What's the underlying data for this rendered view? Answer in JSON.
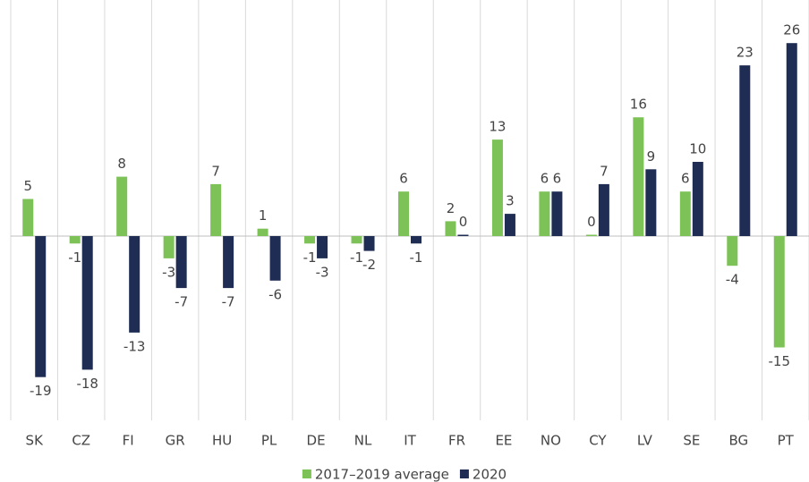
{
  "chart_data": {
    "type": "bar",
    "categories": [
      "SK",
      "CZ",
      "FI",
      "GR",
      "HU",
      "PL",
      "DE",
      "NL",
      "IT",
      "FR",
      "EE",
      "NO",
      "CY",
      "LV",
      "SE",
      "BG",
      "PT"
    ],
    "series": [
      {
        "name": "2017–2019 average",
        "color": "#7dc257",
        "values": [
          5,
          -1,
          8,
          -3,
          7,
          1,
          -1,
          -1,
          6,
          2,
          13,
          6,
          0,
          16,
          6,
          -4,
          -15
        ]
      },
      {
        "name": "2020",
        "color": "#1f2d54",
        "values": [
          -19,
          -18,
          -13,
          -7,
          -7,
          -6,
          -3,
          -2,
          -1,
          0,
          3,
          6,
          7,
          9,
          10,
          23,
          26
        ]
      }
    ],
    "legend": "bottom"
  }
}
